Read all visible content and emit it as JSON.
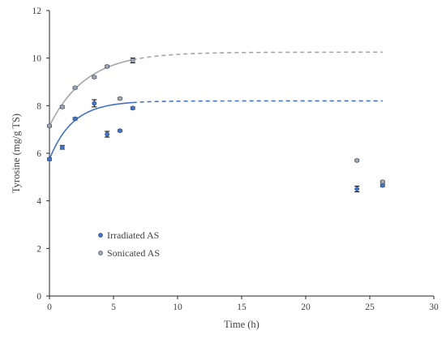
{
  "chart_data": {
    "type": "scatter",
    "xlabel": "Time (h)",
    "ylabel": "Tyrosine (mg/g TS)",
    "xlim": [
      0,
      30
    ],
    "ylim": [
      0,
      12
    ],
    "xticks": [
      "0",
      "5",
      "10",
      "15",
      "20",
      "25",
      "30"
    ],
    "yticks": [
      "0",
      "2",
      "4",
      "6",
      "8",
      "10",
      "12"
    ],
    "grid": false,
    "legend_position": "bottom-left",
    "series": [
      {
        "name": "Irradiated AS",
        "marker_color": "#4472c4",
        "line_color": "#4472c4",
        "x": [
          0,
          1,
          2,
          3.5,
          4.5,
          5.5,
          6.5,
          24,
          26
        ],
        "y": [
          5.75,
          6.25,
          7.45,
          8.1,
          6.8,
          6.95,
          7.9,
          4.5,
          4.65
        ],
        "err": [
          0.05,
          0.08,
          0.05,
          0.15,
          0.12,
          0.04,
          0.05,
          0.12,
          0.05
        ],
        "fit": {
          "y0": 5.75,
          "ymax": 8.2,
          "k": 0.55,
          "x_solid_end": 6.5,
          "x_end": 26
        }
      },
      {
        "name": "Sonicated AS",
        "marker_color": "#a5a5a5",
        "line_color": "#a5a5a5",
        "x": [
          0,
          1,
          2,
          3.5,
          4.5,
          5.5,
          6.5,
          24,
          26
        ],
        "y": [
          7.15,
          7.95,
          8.75,
          9.2,
          9.65,
          8.3,
          9.9,
          5.7,
          4.8
        ],
        "err": [
          0.04,
          0.05,
          0.04,
          0.04,
          0.04,
          0.04,
          0.1,
          0.04,
          0.04
        ],
        "fit": {
          "y0": 7.15,
          "ymax": 10.25,
          "k": 0.35,
          "x_solid_end": 6.5,
          "x_end": 26
        }
      }
    ]
  }
}
